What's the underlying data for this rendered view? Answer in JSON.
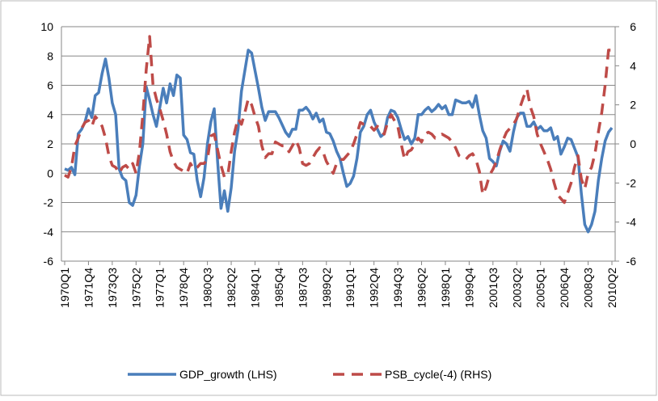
{
  "chart_data": {
    "type": "line",
    "categories": [
      "1970Q1",
      null,
      null,
      null,
      null,
      null,
      null,
      "1971Q4",
      null,
      null,
      null,
      null,
      null,
      null,
      "1973Q3",
      null,
      null,
      null,
      null,
      null,
      null,
      "1975Q2",
      null,
      null,
      null,
      null,
      null,
      null,
      "1977Q1",
      null,
      null,
      null,
      null,
      null,
      null,
      "1978Q4",
      null,
      null,
      null,
      null,
      null,
      null,
      "1980Q3",
      null,
      null,
      null,
      null,
      null,
      null,
      "1982Q2",
      null,
      null,
      null,
      null,
      null,
      null,
      "1984Q1",
      null,
      null,
      null,
      null,
      null,
      null,
      "1985Q4",
      null,
      null,
      null,
      null,
      null,
      null,
      "1987Q3",
      null,
      null,
      null,
      null,
      null,
      null,
      "1989Q2",
      null,
      null,
      null,
      null,
      null,
      null,
      "1991Q1",
      null,
      null,
      null,
      null,
      null,
      null,
      "1992Q4",
      null,
      null,
      null,
      null,
      null,
      null,
      "1994Q3",
      null,
      null,
      null,
      null,
      null,
      null,
      "1996Q2",
      null,
      null,
      null,
      null,
      null,
      null,
      "1998Q1",
      null,
      null,
      null,
      null,
      null,
      null,
      "1999Q4",
      null,
      null,
      null,
      null,
      null,
      null,
      "2001Q3",
      null,
      null,
      null,
      null,
      null,
      null,
      "2003Q2",
      null,
      null,
      null,
      null,
      null,
      null,
      "2005Q1",
      null,
      null,
      null,
      null,
      null,
      null,
      "2006Q4",
      null,
      null,
      null,
      null,
      null,
      null,
      "2008Q3",
      null,
      null,
      null,
      null,
      null,
      null,
      "2010Q2"
    ],
    "series": [
      {
        "name": "GDP_growth (LHS)",
        "color": "#4a7ebb",
        "axis": "y",
        "dashed": false,
        "values": [
          0.3,
          0.2,
          0.4,
          -0.1,
          2.7,
          3.0,
          3.5,
          4.4,
          3.8,
          5.3,
          5.5,
          6.8,
          7.8,
          6.5,
          4.8,
          4.0,
          0.3,
          -0.3,
          -0.5,
          -2.0,
          -2.2,
          -1.5,
          0.5,
          2.0,
          5.9,
          5.0,
          4.0,
          3.2,
          4.5,
          5.8,
          4.8,
          6.1,
          5.3,
          6.7,
          6.5,
          2.6,
          2.3,
          1.4,
          1.3,
          -0.5,
          -1.6,
          -0.3,
          2.0,
          3.5,
          4.4,
          0.8,
          -2.4,
          -1.2,
          -2.6,
          -1.0,
          1.5,
          3.0,
          5.6,
          7.0,
          8.4,
          8.2,
          7.0,
          5.8,
          4.5,
          3.6,
          4.2,
          4.2,
          4.2,
          3.8,
          3.3,
          2.8,
          2.5,
          3.0,
          3.0,
          4.3,
          4.3,
          4.5,
          4.2,
          3.7,
          4.1,
          3.5,
          3.7,
          2.8,
          2.7,
          2.2,
          1.5,
          1.0,
          0.0,
          -0.9,
          -0.7,
          -0.2,
          1.0,
          2.8,
          3.2,
          4.0,
          4.3,
          3.5,
          3.0,
          2.5,
          2.7,
          3.8,
          4.3,
          4.2,
          3.8,
          3.0,
          2.3,
          2.5,
          2.0,
          2.4,
          4.0,
          4.0,
          4.3,
          4.5,
          4.2,
          4.4,
          4.7,
          4.4,
          4.6,
          4.0,
          4.0,
          5.0,
          4.9,
          4.8,
          4.8,
          4.9,
          4.5,
          5.3,
          4.0,
          2.9,
          2.4,
          1.0,
          0.8,
          0.5,
          1.5,
          2.2,
          2.0,
          1.5,
          2.8,
          3.8,
          4.1,
          4.1,
          3.2,
          3.2,
          3.5,
          3.0,
          3.2,
          2.9,
          2.9,
          3.1,
          2.3,
          2.5,
          1.3,
          1.8,
          2.4,
          2.3,
          1.7,
          1.1,
          -1.4,
          -3.5,
          -4.0,
          -3.5,
          -2.6,
          -0.5,
          1.0,
          2.2,
          2.8,
          3.1
        ]
      },
      {
        "name": "PSB_cycle(-4) (RHS)",
        "color": "#be4b48",
        "axis": "y2",
        "dashed": true,
        "values": [
          -1.6,
          -1.7,
          -1.2,
          -0.1,
          0.3,
          0.8,
          1.1,
          1.2,
          0.9,
          1.4,
          1.2,
          0.9,
          0.3,
          -0.6,
          -1.1,
          -1.2,
          -1.5,
          -1.2,
          -1.1,
          -1.3,
          -1.0,
          -1.5,
          -0.4,
          1.5,
          3.8,
          5.5,
          3.0,
          2.3,
          1.8,
          1.2,
          0.5,
          -0.4,
          -0.9,
          -1.2,
          -1.3,
          -1.4,
          -1.5,
          -1.0,
          -1.3,
          -1.2,
          -1.0,
          -1.0,
          -0.8,
          0.4,
          0.5,
          -0.3,
          -1.1,
          -1.7,
          -1.6,
          -0.4,
          0.6,
          1.3,
          1.0,
          1.6,
          2.3,
          2.0,
          1.4,
          0.9,
          -0.1,
          -0.7,
          -0.5,
          -0.5,
          0.1,
          0.0,
          -0.1,
          -0.1,
          -0.4,
          -0.1,
          0.2,
          -0.2,
          -1.0,
          -1.1,
          -1.0,
          -0.7,
          -0.4,
          -0.2,
          -0.4,
          -0.9,
          -1.2,
          -1.5,
          -1.0,
          -0.8,
          -0.8,
          -0.6,
          -0.4,
          0.0,
          0.5,
          1.1,
          1.0,
          1.0,
          0.9,
          0.7,
          0.9,
          0.7,
          0.5,
          1.1,
          1.5,
          1.2,
          0.9,
          0.0,
          -0.8,
          -0.4,
          -0.3,
          0.0,
          0.3,
          0.1,
          0.5,
          0.6,
          0.5,
          0.3,
          0.4,
          0.5,
          0.4,
          0.3,
          0.1,
          -0.2,
          -0.6,
          -0.7,
          -0.8,
          -0.6,
          -0.5,
          -0.8,
          -1.4,
          -2.6,
          -2.2,
          -1.6,
          -1.3,
          -0.9,
          -0.3,
          0.2,
          0.6,
          0.8,
          1.0,
          1.3,
          1.9,
          2.4,
          2.8,
          1.9,
          1.4,
          0.5,
          0.0,
          -0.4,
          -0.8,
          -1.3,
          -2.0,
          -2.6,
          -2.8,
          -3.0,
          -2.5,
          -2.0,
          -1.2,
          -0.6,
          -1.8,
          -2.3,
          -1.5,
          -1.2,
          -0.5,
          0.6,
          1.6,
          3.0,
          4.8,
          4.8
        ]
      }
    ],
    "ylim": [
      -6,
      10
    ],
    "yticks": [
      -6,
      -4,
      -2,
      0,
      2,
      4,
      6,
      8,
      10
    ],
    "y2lim": [
      -6,
      6
    ],
    "y2ticks": [
      -6,
      -4,
      -2,
      0,
      2,
      4,
      6
    ],
    "grid": true,
    "legend": "bottom"
  }
}
